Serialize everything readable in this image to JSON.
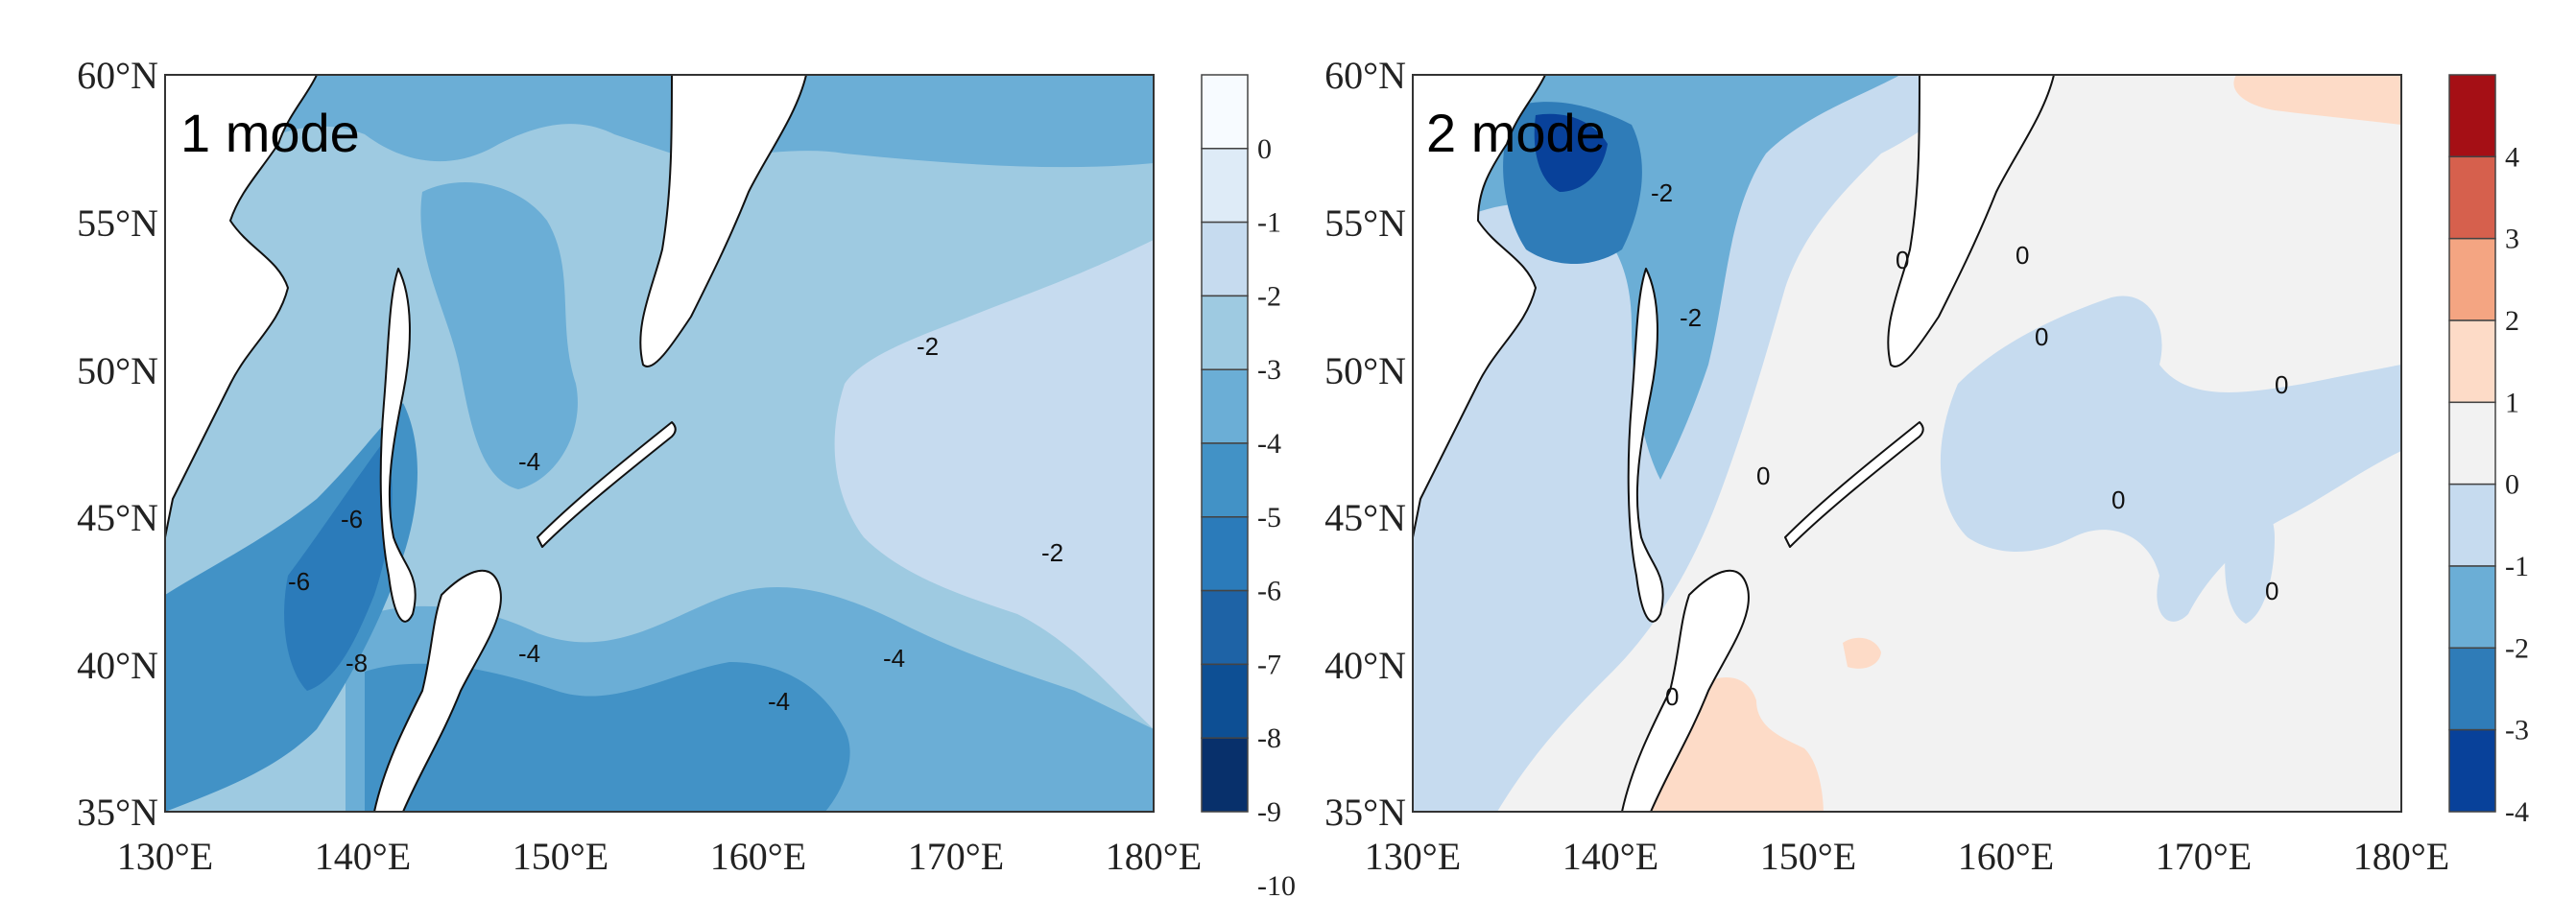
{
  "panels": [
    {
      "id": "mode1",
      "title": "1 mode",
      "x_ticks": [
        "130°E",
        "140°E",
        "150°E",
        "160°E",
        "170°E",
        "180°E"
      ],
      "y_ticks": [
        "60°N",
        "55°N",
        "50°N",
        "45°N",
        "40°N",
        "35°N"
      ],
      "contour_labels": [
        "-2",
        "-2",
        "-4",
        "-4",
        "-4",
        "-4",
        "-6",
        "-6",
        "-8"
      ],
      "colorbar": {
        "labels": [
          "0",
          "-1",
          "-2",
          "-3",
          "-4",
          "-5",
          "-6",
          "-7",
          "-8",
          "-9",
          "-10"
        ],
        "colors": [
          "#f7fbff",
          "#deebf7",
          "#c6dbef",
          "#9ecae1",
          "#6baed6",
          "#4292c6",
          "#2b7bba",
          "#1e63a6",
          "#0d4f94",
          "#08306b"
        ]
      }
    },
    {
      "id": "mode2",
      "title": "2 mode",
      "x_ticks": [
        "130°E",
        "140°E",
        "150°E",
        "160°E",
        "170°E",
        "180°E"
      ],
      "y_ticks": [
        "60°N",
        "55°N",
        "50°N",
        "45°N",
        "40°N",
        "35°N"
      ],
      "contour_labels": [
        "-2",
        "-2",
        "0",
        "0",
        "0",
        "0",
        "0",
        "0",
        "0",
        "0"
      ],
      "colorbar": {
        "labels": [
          "4",
          "3",
          "2",
          "1",
          "0",
          "-1",
          "-2",
          "-3",
          "-4"
        ],
        "colors": [
          "#a50f15",
          "#d6604d",
          "#f4a582",
          "#fddbc7",
          "#f2f2f2",
          "#c6dbef",
          "#6baed6",
          "#2f7cb8",
          "#08419a"
        ]
      }
    }
  ],
  "colors": {
    "land": "#ffffff",
    "coastline": "#111111",
    "frame": "#333333"
  }
}
